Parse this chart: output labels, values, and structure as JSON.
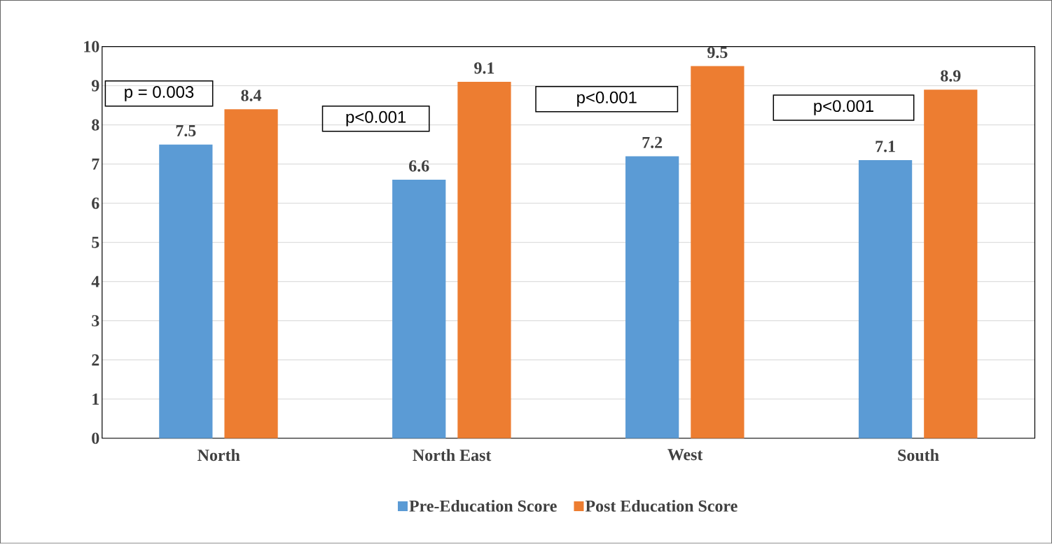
{
  "chart_data": {
    "type": "bar",
    "categories": [
      "North",
      "North East",
      "West",
      "South"
    ],
    "series": [
      {
        "name": "Pre-Education Score",
        "color": "#5b9bd5",
        "values": [
          7.5,
          6.6,
          7.2,
          7.1
        ]
      },
      {
        "name": "Post Education Score",
        "color": "#ed7d31",
        "values": [
          8.4,
          9.1,
          9.5,
          8.9
        ]
      }
    ],
    "ylim": [
      0,
      10
    ],
    "yticks": [
      0,
      1,
      2,
      3,
      4,
      5,
      6,
      7,
      8,
      9,
      10
    ],
    "grid": "y",
    "legend": "bottom",
    "data_labels": true,
    "annotations": [
      "p = 0.003",
      "p<0.001",
      "p<0.001",
      "p<0.001"
    ]
  }
}
